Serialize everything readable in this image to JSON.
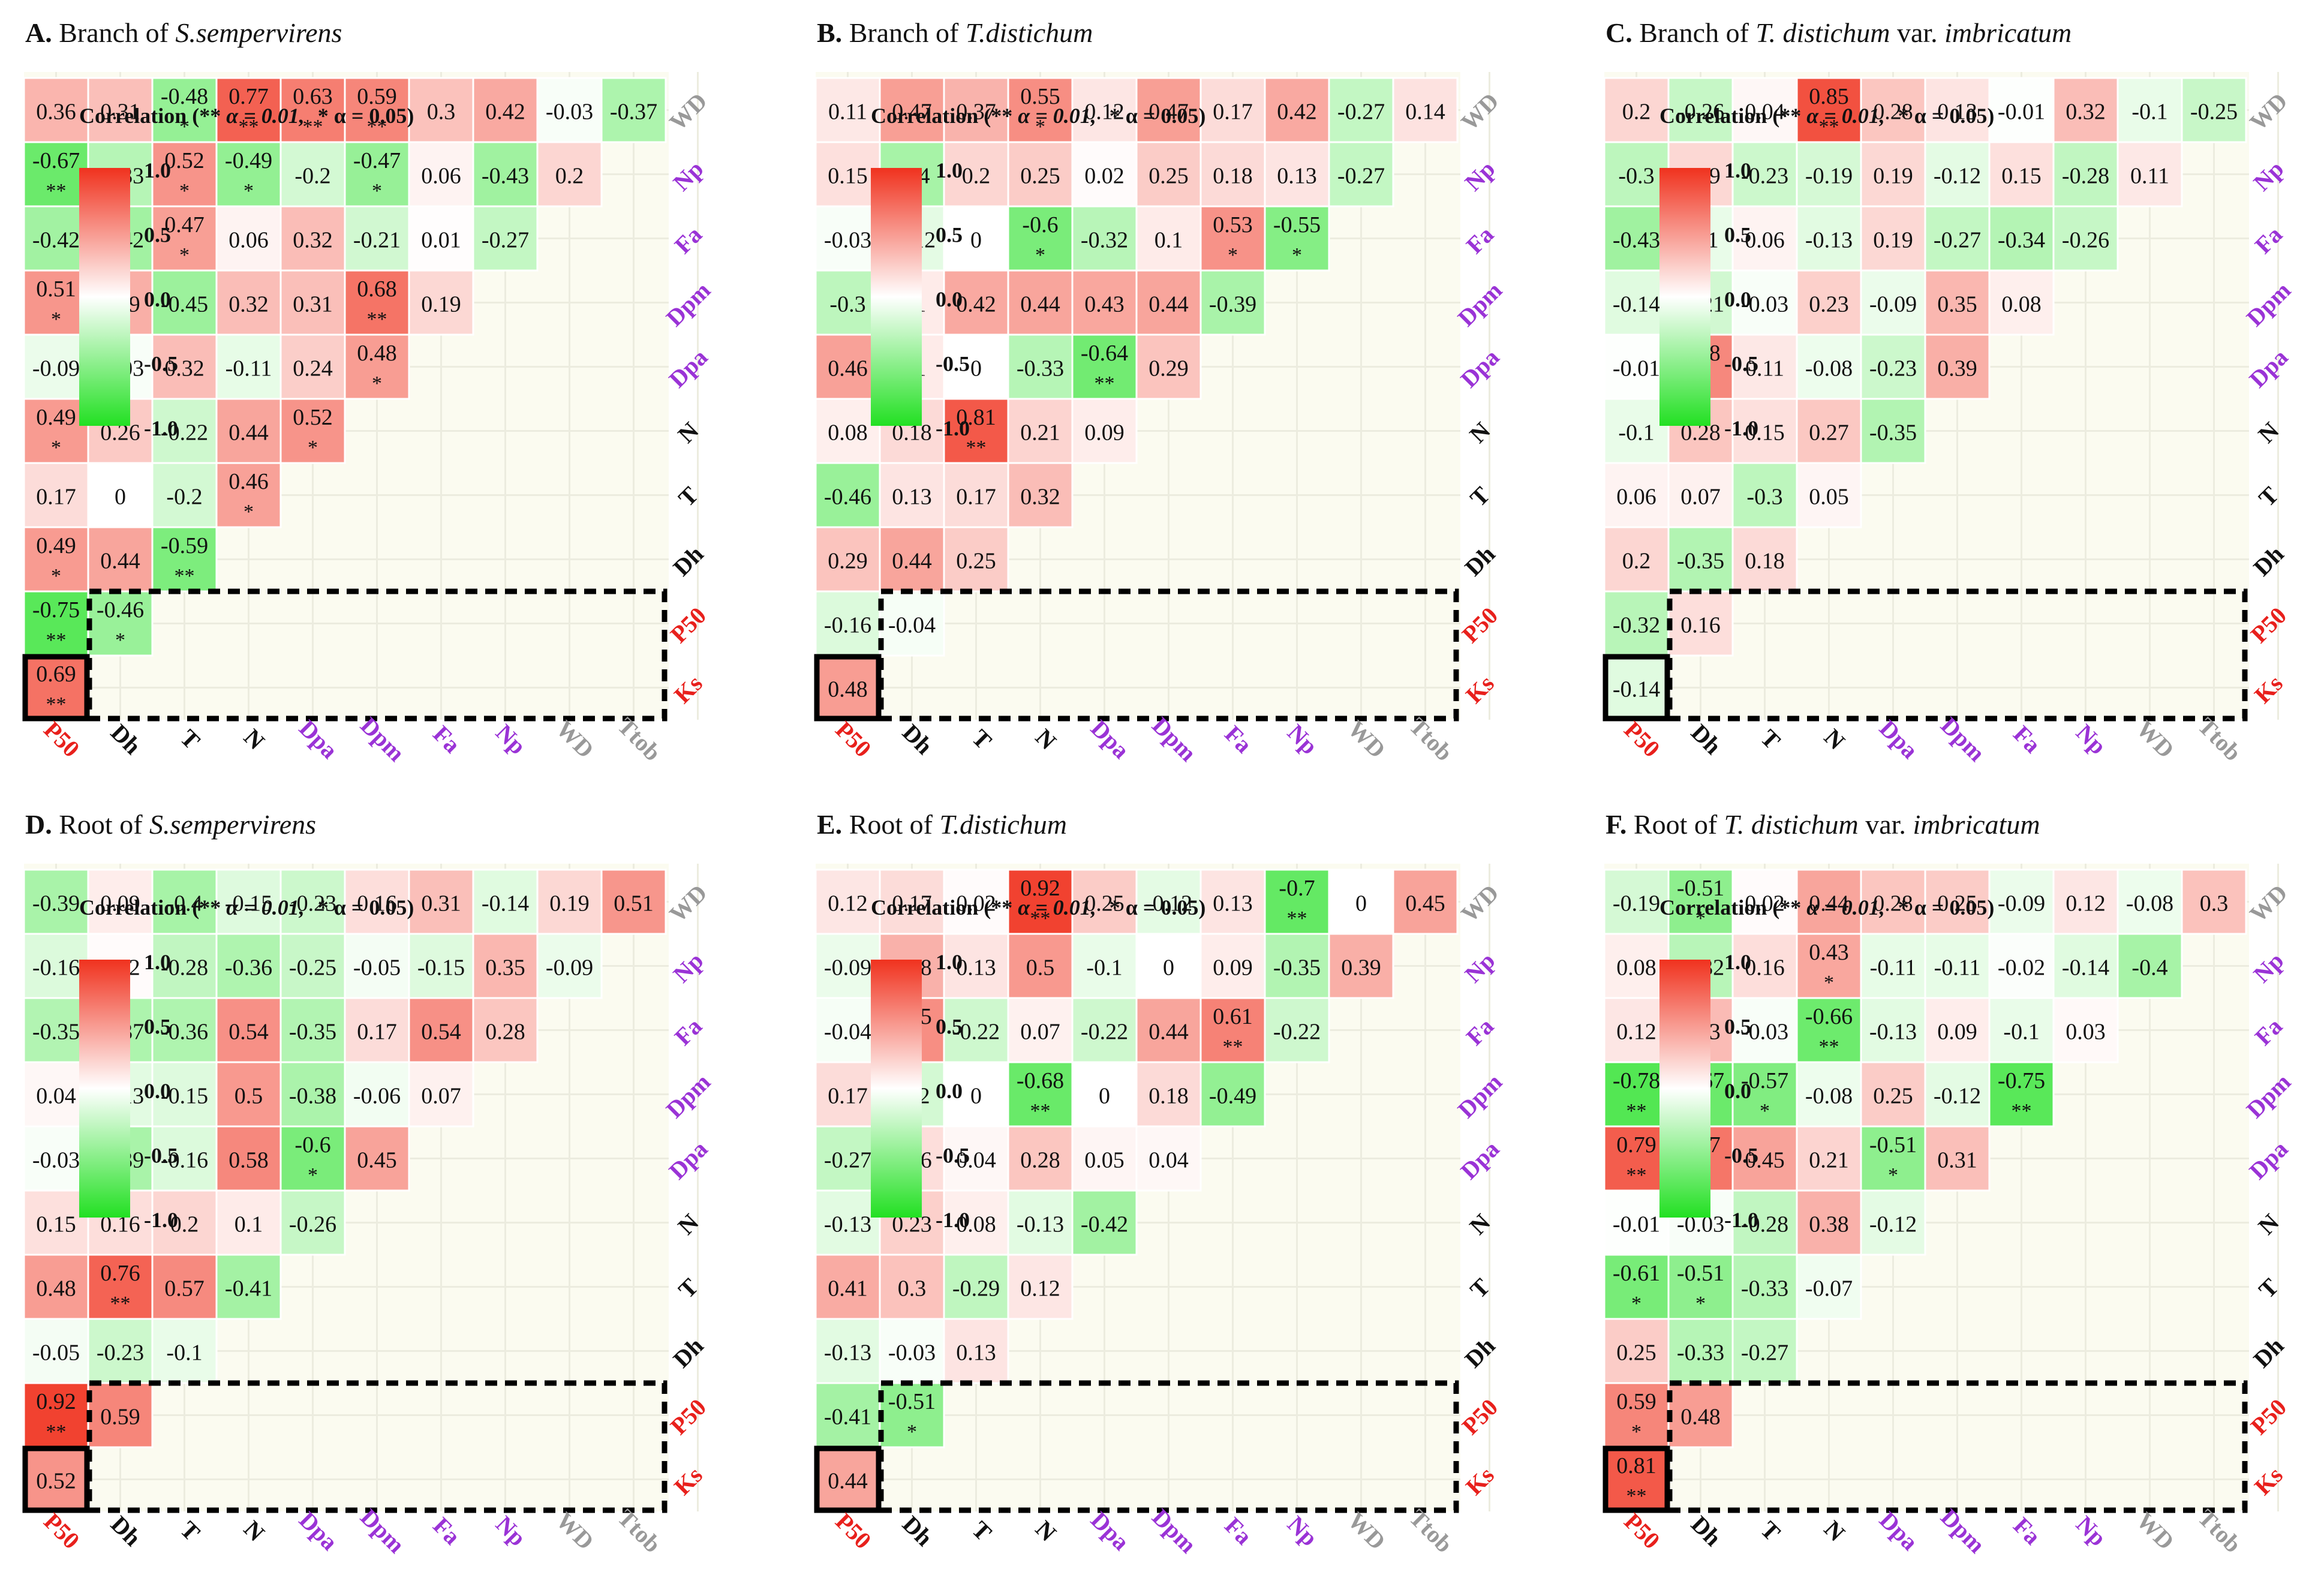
{
  "figure": {
    "variables_x": [
      "P50",
      "Dh",
      "T",
      "N",
      "Dpa",
      "Dpm",
      "Fa",
      "Np",
      "WD",
      "Ttob"
    ],
    "variables_y": [
      "Ks",
      "P50",
      "Dh",
      "T",
      "N",
      "Dpa",
      "Dpm",
      "Fa",
      "Np",
      "WD"
    ],
    "colors": {
      "P50": "#e8201c",
      "Ks": "#e8201c",
      "Dh": "#111111",
      "T": "#111111",
      "N": "#111111",
      "Dpa": "#9a33d6",
      "Dpm": "#9a33d6",
      "Fa": "#9a33d6",
      "Np": "#9a33d6",
      "WD": "#999999",
      "Ttob": "#999999",
      "positive": "#f0321e",
      "neutral": "#ffffff",
      "negative": "#22e022"
    },
    "legend": {
      "caption_prefix": "Correlation (** ",
      "alpha1": "α = 0.01,",
      "alpha2": "* α = 0.05)",
      "ticks": [
        "1.0",
        "0.5",
        "0.0",
        "-0.5",
        "-1.0"
      ]
    }
  },
  "chart_data": [
    {
      "type": "heatmap",
      "label": "A.",
      "title_plain": "Branch of ",
      "title_italic": "S.sempervirens",
      "rows": [
        [
          "0.69 **"
        ],
        [
          "-0.75 **",
          "-0.46 *"
        ],
        [
          "0.49 *",
          "0.44",
          "-0.59 **"
        ],
        [
          "0.17",
          "0",
          "-0.2",
          "0.46 *"
        ],
        [
          "0.49 *",
          "0.26",
          "-0.22",
          "0.44",
          "0.52 *"
        ],
        [
          "-0.09",
          "-0.03",
          "0.32",
          "-0.11",
          "0.24",
          "0.48 *"
        ],
        [
          "0.51 *",
          "0.39",
          "-0.45",
          "0.32",
          "0.31",
          "0.68 **",
          "0.19"
        ],
        [
          "-0.42",
          "-0.42",
          "0.47 *",
          "0.06",
          "0.32",
          "-0.21",
          "0.01",
          "-0.27"
        ],
        [
          "-0.67 **",
          "-0.33",
          "0.52 *",
          "-0.49 *",
          "-0.2",
          "-0.47 *",
          "0.06",
          "-0.43",
          "0.2"
        ],
        [
          "0.36",
          "0.31",
          "-0.48 *",
          "0.77 **",
          "0.63 **",
          "0.59 **",
          "0.3",
          "0.42",
          "-0.03",
          "-0.37"
        ]
      ]
    },
    {
      "type": "heatmap",
      "label": "B.",
      "title_plain": "Branch of ",
      "title_italic": "T.distichum",
      "rows": [
        [
          "0.48"
        ],
        [
          "-0.16",
          "-0.04"
        ],
        [
          "0.29",
          "0.44",
          "0.25"
        ],
        [
          "-0.46",
          "0.13",
          "0.17",
          "0.32"
        ],
        [
          "0.08",
          "0.18",
          "0.81 **",
          "0.21",
          "0.09"
        ],
        [
          "0.46",
          "0.1",
          "0",
          "-0.33",
          "-0.64 **",
          "0.29"
        ],
        [
          "-0.3",
          "0.1",
          "0.42",
          "0.44",
          "0.43",
          "0.44",
          "-0.39"
        ],
        [
          "-0.03",
          "-0.12",
          "0",
          "-0.6 *",
          "-0.32",
          "0.1",
          "0.53 *",
          "-0.55 *"
        ],
        [
          "0.15",
          "-0.4",
          "0.2",
          "0.25",
          "0.02",
          "0.25",
          "0.18",
          "0.13",
          "-0.27"
        ],
        [
          "0.11",
          "0.47",
          "0.37",
          "0.55 *",
          "0.12",
          "0.47",
          "0.17",
          "0.42",
          "-0.27",
          "0.14"
        ]
      ]
    },
    {
      "type": "heatmap",
      "label": "C.",
      "title_plain": "Branch of ",
      "title_italic": "T. distichum",
      "title_plain2": " var. ",
      "title_italic2": "imbricatum",
      "rows": [
        [
          "-0.14"
        ],
        [
          "-0.32",
          "0.16"
        ],
        [
          "0.2",
          "-0.35",
          "0.18"
        ],
        [
          "0.06",
          "0.07",
          "-0.3",
          "0.05"
        ],
        [
          "-0.1",
          "0.28",
          "0.15",
          "0.27",
          "-0.35"
        ],
        [
          "-0.01",
          "0.58 **",
          "0.11",
          "-0.08",
          "-0.23",
          "0.39"
        ],
        [
          "-0.14",
          "-0.21",
          "-0.03",
          "0.23",
          "-0.09",
          "0.35",
          "0.08"
        ],
        [
          "-0.43",
          "-0.1",
          "0.06",
          "-0.13",
          "0.19",
          "-0.27",
          "-0.34",
          "-0.26"
        ],
        [
          "-0.3",
          "0.19",
          "-0.23",
          "-0.19",
          "0.19",
          "-0.12",
          "0.15",
          "-0.28",
          "0.11"
        ],
        [
          "0.2",
          "-0.26",
          "0.04",
          "0.85 **",
          "0.28",
          "0.13",
          "-0.01",
          "0.32",
          "-0.1",
          "-0.25"
        ]
      ]
    },
    {
      "type": "heatmap",
      "label": "D.",
      "title_plain": "Root of ",
      "title_italic": "S.sempervirens",
      "rows": [
        [
          "0.52"
        ],
        [
          "0.92 **",
          "0.59"
        ],
        [
          "-0.05",
          "-0.23",
          "-0.1"
        ],
        [
          "0.48",
          "0.76 **",
          "0.57",
          "-0.41"
        ],
        [
          "0.15",
          "0.16",
          "0.2",
          "0.1",
          "-0.26"
        ],
        [
          "-0.03",
          "-0.39",
          "-0.16",
          "0.58",
          "-0.6 *",
          "0.45"
        ],
        [
          "0.04",
          "-0.13",
          "-0.15",
          "0.5",
          "-0.38",
          "-0.06",
          "0.07"
        ],
        [
          "-0.35",
          "-0.37",
          "-0.36",
          "0.54",
          "-0.35",
          "0.17",
          "0.54",
          "0.28"
        ],
        [
          "-0.16",
          "0.02",
          "-0.28",
          "-0.36",
          "-0.25",
          "-0.05",
          "-0.15",
          "0.35",
          "-0.09"
        ],
        [
          "-0.39",
          "0.09",
          "-0.4",
          "-0.15",
          "-0.23",
          "0.16",
          "0.31",
          "-0.14",
          "0.19",
          "0.51"
        ]
      ]
    },
    {
      "type": "heatmap",
      "label": "E.",
      "title_plain": "Root of ",
      "title_italic": "T.distichum",
      "rows": [
        [
          "0.44"
        ],
        [
          "-0.41",
          "-0.51 *"
        ],
        [
          "-0.13",
          "-0.03",
          "0.13"
        ],
        [
          "0.41",
          "0.3",
          "-0.29",
          "0.12"
        ],
        [
          "-0.13",
          "0.23",
          "0.08",
          "-0.13",
          "-0.42"
        ],
        [
          "-0.27",
          "0.16",
          "0.04",
          "0.28",
          "0.05",
          "0.04"
        ],
        [
          "0.17",
          "-0.2",
          "0",
          "-0.68 **",
          "0",
          "0.18",
          "-0.49"
        ],
        [
          "-0.04",
          "0.55 *",
          "-0.22",
          "0.07",
          "-0.22",
          "0.44",
          "0.61 **",
          "-0.22"
        ],
        [
          "-0.09",
          "0.38",
          "0.13",
          "0.5",
          "-0.1",
          "0",
          "0.09",
          "-0.35",
          "0.39"
        ],
        [
          "0.12",
          "0.17",
          "0.02",
          "0.92 **",
          "0.25",
          "-0.12",
          "0.13",
          "-0.7 **",
          "0",
          "0.45"
        ]
      ]
    },
    {
      "type": "heatmap",
      "label": "F.",
      "title_plain": "Root of ",
      "title_italic": "T. distichum",
      "title_plain2": " var. ",
      "title_italic2": "imbricatum",
      "rows": [
        [
          "0.81 **"
        ],
        [
          "0.59 *",
          "0.48"
        ],
        [
          "0.25",
          "-0.33",
          "-0.27"
        ],
        [
          "-0.61 *",
          "-0.51 *",
          "-0.33",
          "-0.07"
        ],
        [
          "-0.01",
          "-0.03",
          "-0.28",
          "0.38",
          "-0.12"
        ],
        [
          "0.79 **",
          "0.67 **",
          "0.45",
          "0.21",
          "-0.51 *",
          "0.31"
        ],
        [
          "-0.78 **",
          "-0.67 **",
          "-0.57 *",
          "-0.08",
          "0.25",
          "-0.12",
          "-0.75 **"
        ],
        [
          "0.12",
          "0.33",
          "-0.03",
          "-0.66 **",
          "-0.13",
          "0.09",
          "-0.1",
          "0.03"
        ],
        [
          "0.08",
          "-0.32",
          "0.16",
          "0.43 *",
          "-0.11",
          "-0.11",
          "-0.02",
          "-0.14",
          "-0.4"
        ],
        [
          "-0.19",
          "-0.51 *",
          "0.02",
          "0.44",
          "0.28",
          "0.25",
          "-0.09",
          "0.12",
          "-0.08",
          "0.3"
        ]
      ]
    }
  ]
}
